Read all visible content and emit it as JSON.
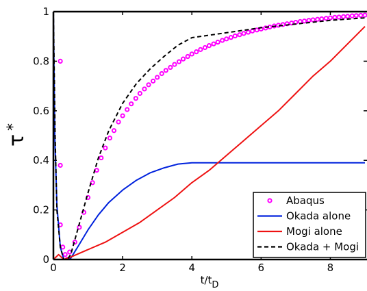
{
  "chart_data": {
    "type": "line",
    "xlabel": "t/t",
    "xlabel_sub": "D",
    "ylabel": "τ",
    "ylabel_sup": "*",
    "xlim": [
      0,
      9
    ],
    "ylim": [
      0,
      1
    ],
    "x_ticks": [
      "0",
      "2",
      "4",
      "6",
      "8"
    ],
    "y_ticks": [
      "0",
      "0.2",
      "0.4",
      "0.6",
      "0.8",
      "1"
    ],
    "grid": false,
    "legend_position": "bottom-right",
    "series": [
      {
        "name": "Abaqus",
        "style": "markers",
        "color": "#ff00ff",
        "x": [
          0.2,
          0.2,
          0.2,
          0.27,
          0.34,
          0.4,
          0.47,
          0.62,
          0.75,
          0.88,
          1.0,
          1.13,
          1.25,
          1.38,
          1.5,
          1.63,
          1.75,
          1.88,
          2.0,
          2.13,
          2.25,
          2.38,
          2.5,
          2.63,
          2.75,
          2.88,
          3.0,
          3.13,
          3.25,
          3.38,
          3.5,
          3.63,
          3.75,
          3.88,
          4.0,
          4.13,
          4.25,
          4.38,
          4.5,
          4.63,
          4.75,
          4.88,
          5.0,
          5.13,
          5.25,
          5.38,
          5.5,
          5.63,
          5.75,
          5.88,
          6.0,
          6.13,
          6.25,
          6.38,
          6.5,
          6.63,
          6.75,
          6.88,
          7.0,
          7.13,
          7.25,
          7.38,
          7.5,
          7.63,
          7.75,
          7.88,
          8.0,
          8.13,
          8.25,
          8.38,
          8.5,
          8.63,
          8.75,
          8.88,
          9.0
        ],
        "y": [
          0.8,
          0.38,
          0.14,
          0.05,
          0.02,
          0.0,
          0.03,
          0.07,
          0.13,
          0.19,
          0.25,
          0.31,
          0.36,
          0.41,
          0.45,
          0.49,
          0.52,
          0.555,
          0.58,
          0.605,
          0.628,
          0.65,
          0.67,
          0.688,
          0.705,
          0.72,
          0.735,
          0.75,
          0.763,
          0.775,
          0.787,
          0.798,
          0.809,
          0.819,
          0.829,
          0.838,
          0.847,
          0.855,
          0.863,
          0.87,
          0.877,
          0.884,
          0.89,
          0.896,
          0.902,
          0.907,
          0.912,
          0.917,
          0.922,
          0.926,
          0.93,
          0.934,
          0.938,
          0.942,
          0.945,
          0.948,
          0.951,
          0.954,
          0.957,
          0.96,
          0.962,
          0.965,
          0.967,
          0.969,
          0.971,
          0.973,
          0.975,
          0.977,
          0.978,
          0.98,
          0.981,
          0.983,
          0.984,
          0.985,
          0.986
        ]
      },
      {
        "name": "Okada alone",
        "style": "solid",
        "color": "#0022dd",
        "x": [
          0.0,
          0.04,
          0.1,
          0.2,
          0.3,
          0.4,
          0.5,
          0.7,
          1.0,
          1.3,
          1.6,
          2.0,
          2.4,
          2.8,
          3.2,
          3.6,
          4.0,
          4.2,
          4.5,
          5.0,
          6.0,
          7.0,
          8.0,
          9.0
        ],
        "y": [
          0.99,
          0.5,
          0.22,
          0.05,
          0.0,
          0.0,
          0.005,
          0.05,
          0.12,
          0.18,
          0.23,
          0.28,
          0.32,
          0.35,
          0.37,
          0.385,
          0.39,
          0.39,
          0.39,
          0.39,
          0.39,
          0.39,
          0.39,
          0.39
        ]
      },
      {
        "name": "Mogi alone",
        "style": "solid",
        "color": "#ee1111",
        "x": [
          0.0,
          0.15,
          0.3,
          0.5,
          1.0,
          1.5,
          2.0,
          2.5,
          3.0,
          3.5,
          4.0,
          4.5,
          5.0,
          5.5,
          6.0,
          6.5,
          7.0,
          7.5,
          8.0,
          8.5,
          9.0
        ],
        "y": [
          0.0,
          0.02,
          0.0,
          0.01,
          0.04,
          0.07,
          0.11,
          0.15,
          0.2,
          0.25,
          0.31,
          0.36,
          0.42,
          0.48,
          0.54,
          0.6,
          0.67,
          0.74,
          0.8,
          0.87,
          0.94
        ]
      },
      {
        "name": "Okada + Mogi",
        "style": "dashed",
        "color": "#000000",
        "x": [
          0.0,
          0.05,
          0.1,
          0.2,
          0.3,
          0.4,
          0.5,
          0.7,
          1.0,
          1.3,
          1.6,
          2.0,
          2.4,
          2.8,
          3.2,
          3.6,
          4.0,
          4.5,
          5.0,
          6.0,
          7.0,
          8.0,
          9.0
        ],
        "y": [
          1.0,
          0.5,
          0.2,
          0.05,
          0.0,
          0.0,
          0.02,
          0.12,
          0.27,
          0.41,
          0.52,
          0.63,
          0.71,
          0.77,
          0.82,
          0.865,
          0.895,
          0.905,
          0.915,
          0.935,
          0.95,
          0.965,
          0.975
        ]
      }
    ]
  }
}
